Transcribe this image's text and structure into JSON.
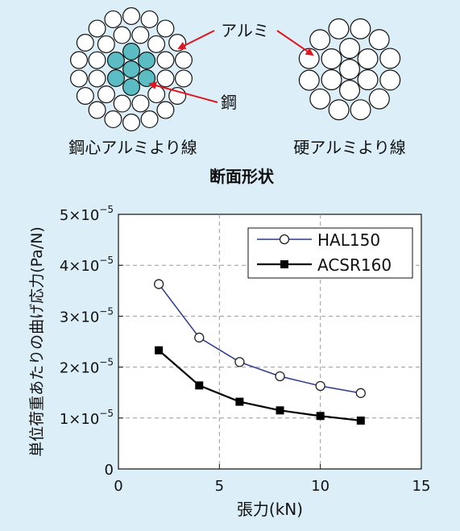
{
  "cross_section": {
    "aluminum_label": "アルミ",
    "steel_label": "鋼",
    "left_caption": "鋼心アルミより線",
    "right_caption": "硬アルミより線",
    "title": "断面形状",
    "colors": {
      "steel_fill": "#5bbcc4",
      "wire_fill": "#ffffff",
      "wire_stroke": "#111111",
      "arrow": "#e0161e"
    }
  },
  "chart_data": {
    "type": "line",
    "xlabel": "張力(kN)",
    "ylabel": "単位荷重あたりの曲げ応力(Pa/N)",
    "xlim": [
      0,
      15
    ],
    "ylim": [
      0,
      5e-05
    ],
    "xticks": [
      0,
      5,
      10,
      15
    ],
    "xtick_labels": [
      "0",
      "5",
      "10",
      "15"
    ],
    "yticks": [
      0,
      1e-05,
      2e-05,
      3e-05,
      4e-05,
      5e-05
    ],
    "ytick_labels": [
      {
        "mantissa": "0",
        "exponent": ""
      },
      {
        "mantissa": "1×10",
        "exponent": "−5"
      },
      {
        "mantissa": "2×10",
        "exponent": "−5"
      },
      {
        "mantissa": "3×10",
        "exponent": "−5"
      },
      {
        "mantissa": "4×10",
        "exponent": "−5"
      },
      {
        "mantissa": "5×10",
        "exponent": "−5"
      }
    ],
    "grid": true,
    "legend_position": "top-right",
    "series": [
      {
        "name": "HAL150",
        "marker": "open-circle",
        "color": "#2a3a8c",
        "x": [
          2,
          4,
          6,
          8,
          10,
          12
        ],
        "y": [
          3.63e-05,
          2.58e-05,
          2.1e-05,
          1.82e-05,
          1.63e-05,
          1.49e-05
        ]
      },
      {
        "name": "ACSR160",
        "marker": "filled-square",
        "color": "#000000",
        "x": [
          2,
          4,
          6,
          8,
          10,
          12
        ],
        "y": [
          2.33e-05,
          1.64e-05,
          1.32e-05,
          1.15e-05,
          1.04e-05,
          9.5e-06
        ]
      }
    ]
  }
}
